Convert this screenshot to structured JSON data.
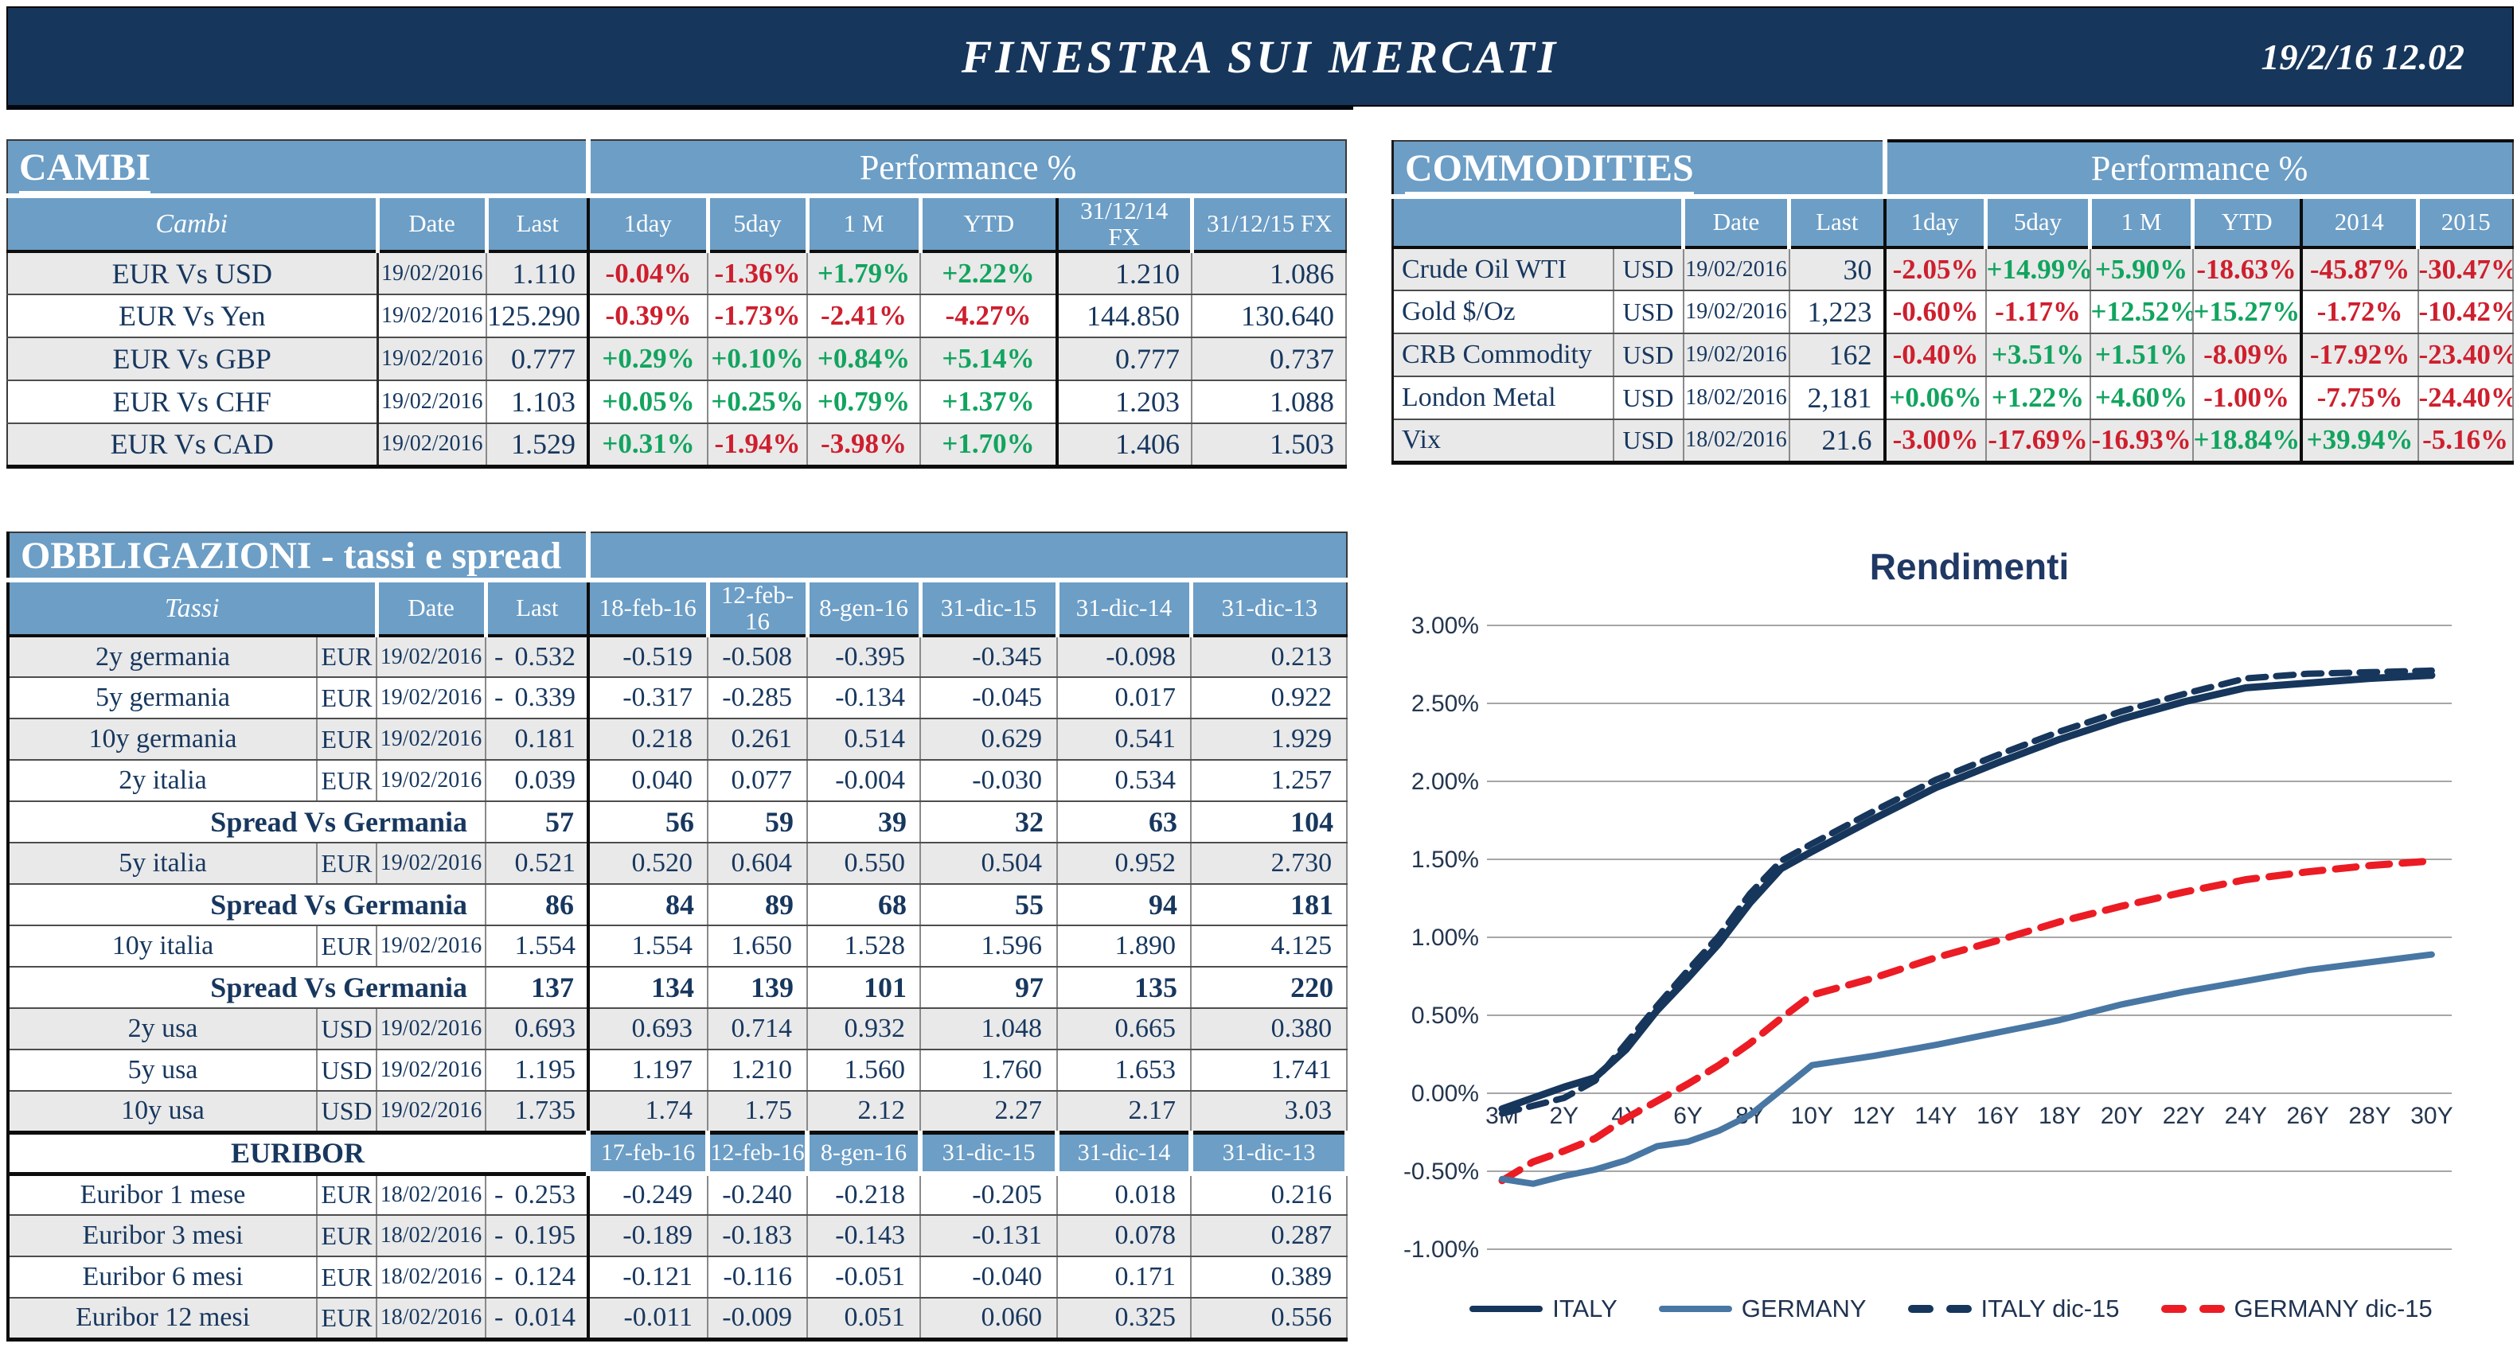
{
  "header": {
    "title": "FINESTRA SUI MERCATI",
    "datetime": "19/2/16 12.02"
  },
  "colors": {
    "header_navy": "#16365C",
    "table_blue": "#6C9EC6",
    "navy_text": "#17375E",
    "positive_green": "#12A45F",
    "negative_red": "#CE1F2E",
    "grid_gray": "#A6A6A6"
  },
  "cambi": {
    "title": "CAMBI",
    "perf_header": "Performance %",
    "columns": [
      "Cambi",
      "Date",
      "Last",
      "1day",
      "5day",
      "1 M",
      "YTD",
      "31/12/14\nFX",
      "31/12/15  FX"
    ],
    "rows": [
      {
        "name": "EUR Vs USD",
        "date": "19/02/2016",
        "last": "1.110",
        "perf": [
          "-0.04%",
          "-1.36%",
          "+1.79%",
          "+2.22%"
        ],
        "fx14": "1.210",
        "fx15": "1.086"
      },
      {
        "name": "EUR Vs Yen",
        "date": "19/02/2016",
        "last": "125.290",
        "perf": [
          "-0.39%",
          "-1.73%",
          "-2.41%",
          "-4.27%"
        ],
        "fx14": "144.850",
        "fx15": "130.640"
      },
      {
        "name": "EUR Vs GBP",
        "date": "19/02/2016",
        "last": "0.777",
        "perf": [
          "+0.29%",
          "+0.10%",
          "+0.84%",
          "+5.14%"
        ],
        "fx14": "0.777",
        "fx15": "0.737"
      },
      {
        "name": "EUR Vs CHF",
        "date": "19/02/2016",
        "last": "1.103",
        "perf": [
          "+0.05%",
          "+0.25%",
          "+0.79%",
          "+1.37%"
        ],
        "fx14": "1.203",
        "fx15": "1.088"
      },
      {
        "name": "EUR Vs CAD",
        "date": "19/02/2016",
        "last": "1.529",
        "perf": [
          "+0.31%",
          "-1.94%",
          "-3.98%",
          "+1.70%"
        ],
        "fx14": "1.406",
        "fx15": "1.503"
      }
    ]
  },
  "commodities": {
    "title": "COMMODITIES",
    "perf_header": "Performance %",
    "columns": [
      "",
      "Date",
      "Last",
      "1day",
      "5day",
      "1 M",
      "YTD",
      "2014",
      "2015"
    ],
    "rows": [
      {
        "name": "Crude Oil WTI",
        "cur": "USD",
        "date": "19/02/2016",
        "last": "30",
        "perf": [
          "-2.05%",
          "+14.99%",
          "+5.90%",
          "-18.63%",
          "-45.87%",
          "-30.47%"
        ]
      },
      {
        "name": "Gold $/Oz",
        "cur": "USD",
        "date": "19/02/2016",
        "last": "1,223",
        "perf": [
          "-0.60%",
          "-1.17%",
          "+12.52%",
          "+15.27%",
          "-1.72%",
          "-10.42%"
        ]
      },
      {
        "name": "CRB Commodity",
        "cur": "USD",
        "date": "19/02/2016",
        "last": "162",
        "perf": [
          "-0.40%",
          "+3.51%",
          "+1.51%",
          "-8.09%",
          "-17.92%",
          "-23.40%"
        ]
      },
      {
        "name": "London Metal",
        "cur": "USD",
        "date": "18/02/2016",
        "last": "2,181",
        "perf": [
          "+0.06%",
          "+1.22%",
          "+4.60%",
          "-1.00%",
          "-7.75%",
          "-24.40%"
        ]
      },
      {
        "name": "Vix",
        "cur": "USD",
        "date": "18/02/2016",
        "last": "21.6",
        "perf": [
          "-3.00%",
          "-17.69%",
          "-16.93%",
          "+18.84%",
          "+39.94%",
          "-5.16%"
        ]
      }
    ]
  },
  "bonds": {
    "title": "OBBLIGAZIONI - tassi e spread",
    "columns": [
      "Tassi",
      "Date",
      "Last",
      "18-feb-16",
      "12-feb-16",
      "8-gen-16",
      "31-dic-15",
      "31-dic-14",
      "31-dic-13"
    ],
    "rows": [
      {
        "type": "data",
        "name": "2y germania",
        "cur": "EUR",
        "date": "19/02/2016",
        "neg": true,
        "last": "0.532",
        "hist": [
          "-0.519",
          "-0.508",
          "-0.395",
          "-0.345",
          "-0.098",
          "0.213"
        ]
      },
      {
        "type": "data",
        "name": "5y germania",
        "cur": "EUR",
        "date": "19/02/2016",
        "neg": true,
        "last": "0.339",
        "hist": [
          "-0.317",
          "-0.285",
          "-0.134",
          "-0.045",
          "0.017",
          "0.922"
        ]
      },
      {
        "type": "data",
        "name": "10y germania",
        "cur": "EUR",
        "date": "19/02/2016",
        "neg": false,
        "last": "0.181",
        "hist": [
          "0.218",
          "0.261",
          "0.514",
          "0.629",
          "0.541",
          "1.929"
        ]
      },
      {
        "type": "data",
        "name": "2y italia",
        "cur": "EUR",
        "date": "19/02/2016",
        "neg": false,
        "last": "0.039",
        "hist": [
          "0.040",
          "0.077",
          "-0.004",
          "-0.030",
          "0.534",
          "1.257"
        ]
      },
      {
        "type": "spread",
        "label": "Spread Vs Germania",
        "last": "57",
        "hist": [
          "56",
          "59",
          "39",
          "32",
          "63",
          "104"
        ]
      },
      {
        "type": "data",
        "name": "5y italia",
        "cur": "EUR",
        "date": "19/02/2016",
        "neg": false,
        "last": "0.521",
        "hist": [
          "0.520",
          "0.604",
          "0.550",
          "0.504",
          "0.952",
          "2.730"
        ]
      },
      {
        "type": "spread",
        "label": "Spread Vs Germania",
        "last": "86",
        "hist": [
          "84",
          "89",
          "68",
          "55",
          "94",
          "181"
        ]
      },
      {
        "type": "data",
        "name": "10y italia",
        "cur": "EUR",
        "date": "19/02/2016",
        "neg": false,
        "last": "1.554",
        "hist": [
          "1.554",
          "1.650",
          "1.528",
          "1.596",
          "1.890",
          "4.125"
        ]
      },
      {
        "type": "spread",
        "label": "Spread Vs Germania",
        "last": "137",
        "hist": [
          "134",
          "139",
          "101",
          "97",
          "135",
          "220"
        ]
      },
      {
        "type": "data",
        "name": "2y usa",
        "cur": "USD",
        "date": "19/02/2016",
        "neg": false,
        "last": "0.693",
        "hist": [
          "0.693",
          "0.714",
          "0.932",
          "1.048",
          "0.665",
          "0.380"
        ]
      },
      {
        "type": "data",
        "name": "5y usa",
        "cur": "USD",
        "date": "19/02/2016",
        "neg": false,
        "last": "1.195",
        "hist": [
          "1.197",
          "1.210",
          "1.560",
          "1.760",
          "1.653",
          "1.741"
        ]
      },
      {
        "type": "data",
        "name": "10y usa",
        "cur": "USD",
        "date": "19/02/2016",
        "neg": false,
        "last": "1.735",
        "hist": [
          "1.74",
          "1.75",
          "2.12",
          "2.27",
          "2.17",
          "3.03"
        ]
      },
      {
        "type": "section",
        "label": "EURIBOR",
        "dates": [
          "17-feb-16",
          "12-feb-16",
          "8-gen-16",
          "31-dic-15",
          "31-dic-14",
          "31-dic-13"
        ]
      },
      {
        "type": "data",
        "name": "Euribor 1 mese",
        "cur": "EUR",
        "date": "18/02/2016",
        "neg": true,
        "last": "0.253",
        "hist": [
          "-0.249",
          "-0.240",
          "-0.218",
          "-0.205",
          "0.018",
          "0.216"
        ]
      },
      {
        "type": "data",
        "name": "Euribor 3 mesi",
        "cur": "EUR",
        "date": "18/02/2016",
        "neg": true,
        "last": "0.195",
        "hist": [
          "-0.189",
          "-0.183",
          "-0.143",
          "-0.131",
          "0.078",
          "0.287"
        ]
      },
      {
        "type": "data",
        "name": "Euribor 6 mesi",
        "cur": "EUR",
        "date": "18/02/2016",
        "neg": true,
        "last": "0.124",
        "hist": [
          "-0.121",
          "-0.116",
          "-0.051",
          "-0.040",
          "0.171",
          "0.389"
        ]
      },
      {
        "type": "data",
        "name": "Euribor 12 mesi",
        "cur": "EUR",
        "date": "18/02/2016",
        "neg": true,
        "last": "0.014",
        "hist": [
          "-0.011",
          "-0.009",
          "0.051",
          "0.060",
          "0.325",
          "0.556"
        ]
      }
    ]
  },
  "chart_data": {
    "type": "line",
    "title": "Rendimenti",
    "xlabel": "",
    "ylabel": "",
    "grid": true,
    "legend_position": "bottom",
    "y_range": [
      -1.0,
      3.0
    ],
    "y_ticks": [
      {
        "label": "3.00%",
        "value": 3.0
      },
      {
        "label": "2.50%",
        "value": 2.5
      },
      {
        "label": "2.00%",
        "value": 2.0
      },
      {
        "label": "1.50%",
        "value": 1.5
      },
      {
        "label": "1.00%",
        "value": 1.0
      },
      {
        "label": "0.50%",
        "value": 0.5
      },
      {
        "label": "0.00%",
        "value": 0.0
      },
      {
        "label": "-0.50%",
        "value": -0.5
      },
      {
        "label": "-1.00%",
        "value": -1.0
      }
    ],
    "x_ticks": [
      {
        "label": "3M",
        "year": 0
      },
      {
        "label": "2Y",
        "year": 2
      },
      {
        "label": "4Y",
        "year": 4
      },
      {
        "label": "6Y",
        "year": 6
      },
      {
        "label": "8Y",
        "year": 8
      },
      {
        "label": "10Y",
        "year": 10
      },
      {
        "label": "12Y",
        "year": 12
      },
      {
        "label": "14Y",
        "year": 14
      },
      {
        "label": "16Y",
        "year": 16
      },
      {
        "label": "18Y",
        "year": 18
      },
      {
        "label": "20Y",
        "year": 20
      },
      {
        "label": "22Y",
        "year": 22
      },
      {
        "label": "24Y",
        "year": 24
      },
      {
        "label": "26Y",
        "year": 26
      },
      {
        "label": "28Y",
        "year": 28
      },
      {
        "label": "30Y",
        "year": 30
      }
    ],
    "x_years": [
      0,
      1,
      2,
      3,
      4,
      5,
      6,
      7,
      8,
      9,
      10,
      12,
      14,
      16,
      18,
      20,
      22,
      24,
      26,
      28,
      30
    ],
    "series": [
      {
        "name": "ITALY",
        "color": "#16365C",
        "style": "solid",
        "values": [
          -0.1,
          -0.03,
          0.04,
          0.1,
          0.28,
          0.53,
          0.74,
          0.96,
          1.22,
          1.44,
          1.55,
          1.76,
          1.96,
          2.12,
          2.27,
          2.4,
          2.51,
          2.6,
          2.63,
          2.66,
          2.68
        ]
      },
      {
        "name": "GERMANY",
        "color": "#4977A4",
        "style": "solid",
        "values": [
          -0.55,
          -0.58,
          -0.53,
          -0.49,
          -0.43,
          -0.34,
          -0.31,
          -0.24,
          -0.14,
          0.02,
          0.18,
          0.24,
          0.31,
          0.39,
          0.47,
          0.57,
          0.65,
          0.72,
          0.79,
          0.84,
          0.89
        ]
      },
      {
        "name": "ITALY dic-15",
        "color": "#16365C",
        "style": "dashed",
        "values": [
          -0.13,
          -0.08,
          -0.03,
          0.08,
          0.32,
          0.56,
          0.79,
          1.01,
          1.28,
          1.49,
          1.6,
          1.81,
          2.01,
          2.17,
          2.32,
          2.45,
          2.56,
          2.66,
          2.69,
          2.7,
          2.71
        ]
      },
      {
        "name": "GERMANY dic-15",
        "color": "#EB1C24",
        "style": "dashed",
        "values": [
          -0.56,
          -0.44,
          -0.37,
          -0.29,
          -0.16,
          -0.05,
          0.06,
          0.18,
          0.32,
          0.48,
          0.63,
          0.74,
          0.87,
          0.98,
          1.1,
          1.2,
          1.29,
          1.37,
          1.42,
          1.46,
          1.49
        ]
      }
    ]
  }
}
